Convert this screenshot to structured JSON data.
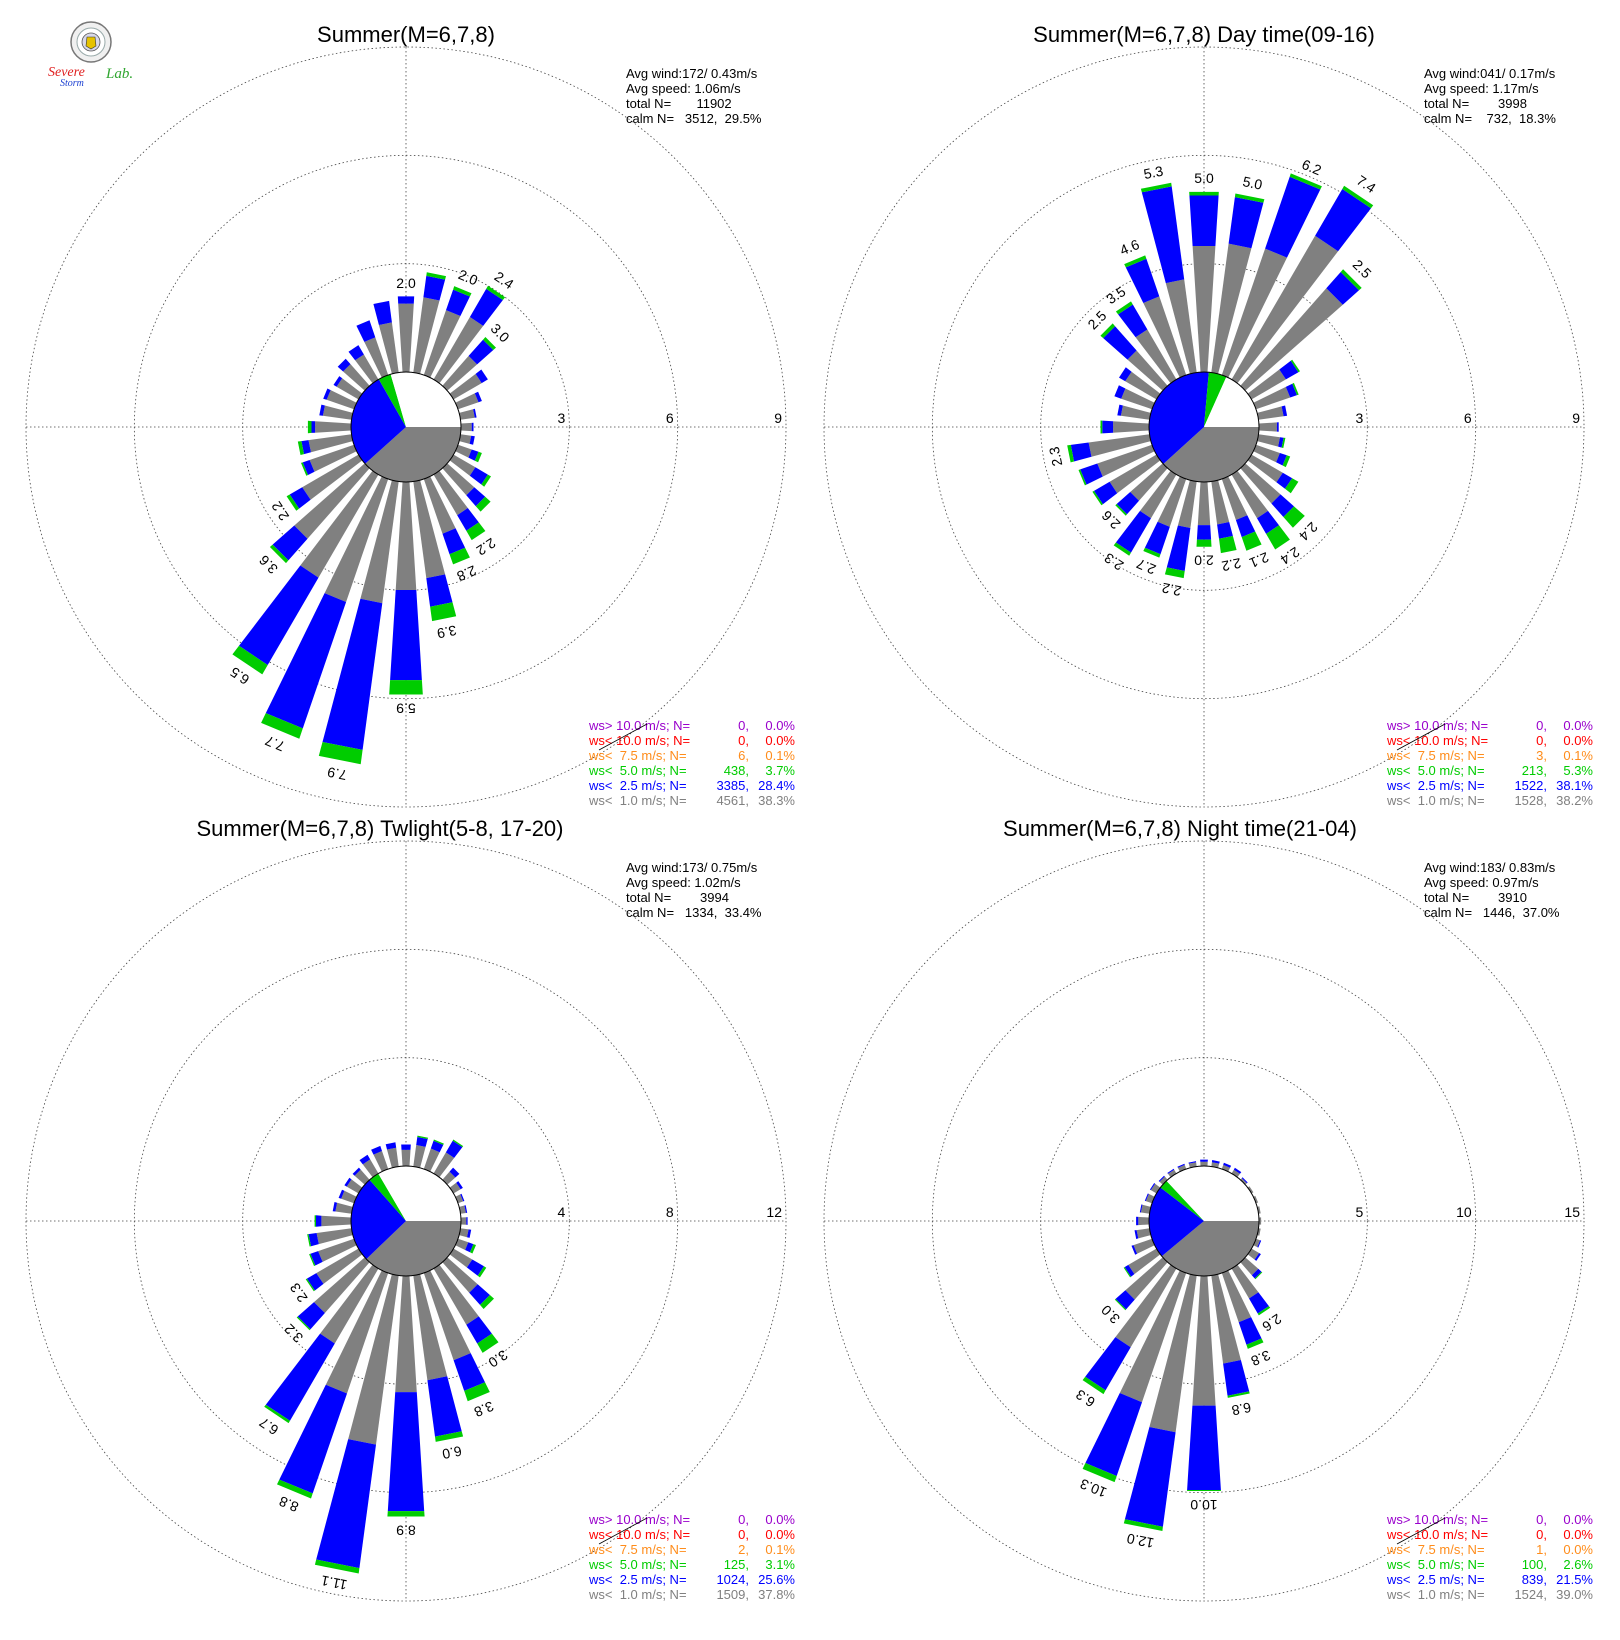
{
  "logo": {
    "name": "Severe Storm Lab.",
    "text_severe": "Severe",
    "text_storm": "Storm",
    "text_lab": "Lab.",
    "colors": {
      "severe": "#e02020",
      "storm": "#1a3fd1",
      "lab": "#2fa52f"
    }
  },
  "legend_labels": [
    "ws> 10.0 m/s; N=",
    "ws< 10.0 m/s; N=",
    "ws<  7.5 m/s; N=",
    "ws<  5.0 m/s; N=",
    "ws<  2.5 m/s; N=",
    "ws<  1.0 m/s; N="
  ],
  "bins": [
    {
      "label": "ws> 10.0 m/s",
      "color": "#9900cc"
    },
    {
      "label": "ws< 10.0 m/s",
      "color": "#ff0000"
    },
    {
      "label": "ws< 7.5 m/s",
      "color": "#ff8c1a"
    },
    {
      "label": "ws< 5.0 m/s",
      "color": "#00cc00"
    },
    {
      "label": "ws< 2.5 m/s",
      "color": "#0000ff"
    },
    {
      "label": "ws< 1.0 m/s",
      "color": "#808080"
    }
  ],
  "chart_data": [
    {
      "type": "windrose",
      "title": "Summer(M=6,7,8)",
      "stats": {
        "avg_wind": "Avg wind:172/ 0.43m/s",
        "avg_speed": "Avg speed: 1.06m/s",
        "total": "total N=       11902",
        "calm": "calm N=   3512,  29.5%"
      },
      "radial_ticks": [
        "3",
        "6",
        "9"
      ],
      "rmax": 9,
      "calm_pie_pct": [
        38.3,
        28.4,
        3.7,
        29.5
      ],
      "petals": [
        [
          1.9,
          0.2,
          0
        ],
        [
          2.1,
          0.6,
          0.1
        ],
        [
          1.9,
          0.6,
          0.1
        ],
        [
          2.0,
          0.9,
          0.1
        ],
        [
          1.1,
          0.6,
          0.1
        ],
        [
          0.9,
          0.2,
          0
        ],
        [
          0.6,
          0.1,
          0
        ],
        [
          0.4,
          0.05,
          0
        ],
        [
          0.3,
          0.05,
          0
        ],
        [
          0.3,
          0.1,
          0
        ],
        [
          0.4,
          0.2,
          0.1
        ],
        [
          0.7,
          0.4,
          0.1
        ],
        [
          1.0,
          0.4,
          0.2
        ],
        [
          1.3,
          0.5,
          0.3
        ],
        [
          1.6,
          0.6,
          0.3
        ],
        [
          2.7,
          0.8,
          0.4
        ],
        [
          3.0,
          2.5,
          0.4
        ],
        [
          3.4,
          4.1,
          0.4
        ],
        [
          3.6,
          3.7,
          0.3
        ],
        [
          3.3,
          2.8,
          0.3
        ],
        [
          2.6,
          0.8,
          0.1
        ],
        [
          1.8,
          0.4,
          0.1
        ],
        [
          1.3,
          0.2,
          0.05
        ],
        [
          1.2,
          0.2,
          0.1
        ],
        [
          1.0,
          0.1,
          0.1
        ],
        [
          0.8,
          0.1,
          0
        ],
        [
          0.8,
          0.1,
          0
        ],
        [
          0.7,
          0.1,
          0
        ],
        [
          0.8,
          0.2,
          0
        ],
        [
          0.8,
          0.3,
          0
        ],
        [
          1.1,
          0.5,
          0
        ],
        [
          1.4,
          0.6,
          0
        ]
      ],
      "petal_labels": [
        {
          "dir": 0,
          "text": "2.0"
        },
        {
          "dir": 2,
          "text": "2.0"
        },
        {
          "dir": 3,
          "text": "2.4"
        },
        {
          "dir": 4,
          "text": "3.0"
        },
        {
          "dir": 13,
          "text": "2.2"
        },
        {
          "dir": 14,
          "text": "2.8"
        },
        {
          "dir": 15,
          "text": "3.9"
        },
        {
          "dir": 16,
          "text": "5.9"
        },
        {
          "dir": 17,
          "text": "7.9"
        },
        {
          "dir": 18,
          "text": "7.7"
        },
        {
          "dir": 19,
          "text": "6.5"
        },
        {
          "dir": 20,
          "text": "3.6"
        },
        {
          "dir": 21,
          "text": "2.2"
        }
      ],
      "legend": [
        {
          "n": "0",
          "pct": "0.0%"
        },
        {
          "n": "0",
          "pct": "0.0%"
        },
        {
          "n": "6",
          "pct": "0.1%"
        },
        {
          "n": "438",
          "pct": "3.7%"
        },
        {
          "n": "3385",
          "pct": "28.4%"
        },
        {
          "n": "4561",
          "pct": "38.3%"
        }
      ]
    },
    {
      "type": "windrose",
      "title": "Summer(M=6,7,8) Day time(09-16)",
      "stats": {
        "avg_wind": "Avg wind:041/ 0.17m/s",
        "avg_speed": "Avg speed: 1.17m/s",
        "total": "total N=        3998",
        "calm": "calm N=    732,  18.3%"
      },
      "radial_ticks": [
        "3",
        "6",
        "9"
      ],
      "rmax": 9,
      "calm_pie_pct": [
        38.2,
        38.1,
        5.3,
        18.3
      ],
      "petals": [
        [
          3.5,
          1.4,
          0.1
        ],
        [
          3.6,
          1.3,
          0.1
        ],
        [
          3.7,
          2.1,
          0.1
        ],
        [
          4.6,
          1.5,
          0.1
        ],
        [
          3.6,
          0.6,
          0.1
        ],
        [
          1.1,
          0.4,
          0.05
        ],
        [
          1.0,
          0.2,
          0.05
        ],
        [
          0.7,
          0.1,
          0
        ],
        [
          0.5,
          0.05,
          0
        ],
        [
          0.6,
          0.1,
          0.05
        ],
        [
          0.7,
          0.2,
          0.1
        ],
        [
          1.0,
          0.3,
          0.2
        ],
        [
          1.3,
          0.5,
          0.4
        ],
        [
          1.4,
          0.5,
          0.5
        ],
        [
          1.2,
          0.5,
          0.4
        ],
        [
          1.2,
          0.4,
          0.4
        ],
        [
          1.2,
          0.4,
          0.2
        ],
        [
          1.3,
          1.2,
          0.2
        ],
        [
          1.4,
          0.8,
          0.1
        ],
        [
          1.4,
          1.1,
          0.1
        ],
        [
          1.2,
          0.5,
          0.05
        ],
        [
          1.5,
          0.5,
          0.05
        ],
        [
          1.6,
          0.5,
          0.05
        ],
        [
          1.7,
          0.5,
          0.1
        ],
        [
          1.0,
          0.3,
          0.05
        ],
        [
          0.8,
          0.1,
          0
        ],
        [
          0.9,
          0.2,
          0
        ],
        [
          1.0,
          0.2,
          0
        ],
        [
          1.3,
          0.9,
          0.1
        ],
        [
          1.6,
          0.8,
          0.1
        ],
        [
          2.3,
          1.1,
          0.1
        ],
        [
          2.6,
          2.6,
          0.1
        ]
      ],
      "petal_labels": [
        {
          "dir": 0,
          "text": "5.0"
        },
        {
          "dir": 1,
          "text": "5.0"
        },
        {
          "dir": 2,
          "text": "6.2"
        },
        {
          "dir": 3,
          "text": "7.4"
        },
        {
          "dir": 4,
          "text": "2.5"
        },
        {
          "dir": 12,
          "text": "2.4"
        },
        {
          "dir": 13,
          "text": "2.4"
        },
        {
          "dir": 14,
          "text": "2.1"
        },
        {
          "dir": 15,
          "text": "2.2"
        },
        {
          "dir": 16,
          "text": "2.0"
        },
        {
          "dir": 17,
          "text": "2.2"
        },
        {
          "dir": 18,
          "text": "2.7"
        },
        {
          "dir": 19,
          "text": "2.3"
        },
        {
          "dir": 20,
          "text": "2.6"
        },
        {
          "dir": 23,
          "text": "2.3"
        },
        {
          "dir": 28,
          "text": "2.5"
        },
        {
          "dir": 29,
          "text": "3.5"
        },
        {
          "dir": 30,
          "text": "4.6"
        },
        {
          "dir": 31,
          "text": "5.3"
        }
      ],
      "legend": [
        {
          "n": "0",
          "pct": "0.0%"
        },
        {
          "n": "0",
          "pct": "0.0%"
        },
        {
          "n": "3",
          "pct": "0.1%"
        },
        {
          "n": "213",
          "pct": "5.3%"
        },
        {
          "n": "1522",
          "pct": "38.1%"
        },
        {
          "n": "1528",
          "pct": "38.2%"
        }
      ]
    },
    {
      "type": "windrose",
      "title": "Summer(M=6,7,8) Twlight(5-8, 17-20)",
      "stats": {
        "avg_wind": "Avg wind:173/ 0.75m/s",
        "avg_speed": "Avg speed: 1.02m/s",
        "total": "total N=        3994",
        "calm": "calm N=   1334,  33.4%"
      },
      "radial_ticks": [
        "4",
        "8",
        "12"
      ],
      "rmax": 12,
      "calm_pie_pct": [
        37.8,
        25.6,
        3.1,
        33.4
      ],
      "petals": [
        [
          0.6,
          0.2,
          0
        ],
        [
          0.8,
          0.3,
          0.05
        ],
        [
          0.8,
          0.3,
          0.05
        ],
        [
          0.9,
          0.5,
          0.05
        ],
        [
          0.4,
          0.2,
          0
        ],
        [
          0.3,
          0.1,
          0
        ],
        [
          0.2,
          0.05,
          0
        ],
        [
          0.2,
          0.05,
          0
        ],
        [
          0.2,
          0.05,
          0
        ],
        [
          0.3,
          0.1,
          0
        ],
        [
          0.4,
          0.2,
          0.1
        ],
        [
          0.8,
          0.5,
          0.1
        ],
        [
          1.5,
          0.6,
          0.2
        ],
        [
          2.4,
          0.8,
          0.4
        ],
        [
          3.4,
          1.2,
          0.4
        ],
        [
          3.9,
          2.1,
          0.2
        ],
        [
          4.3,
          4.4,
          0.2
        ],
        [
          6.3,
          4.6,
          0.2
        ],
        [
          4.7,
          3.9,
          0.2
        ],
        [
          3.2,
          3.3,
          0.1
        ],
        [
          2.5,
          0.8,
          0.05
        ],
        [
          1.8,
          0.4,
          0.05
        ],
        [
          1.4,
          0.3,
          0.05
        ],
        [
          1.3,
          0.3,
          0.05
        ],
        [
          1.1,
          0.2,
          0.05
        ],
        [
          0.6,
          0.1,
          0
        ],
        [
          0.5,
          0.1,
          0
        ],
        [
          0.5,
          0.1,
          0
        ],
        [
          0.5,
          0.1,
          0
        ],
        [
          0.6,
          0.2,
          0
        ],
        [
          0.7,
          0.2,
          0
        ],
        [
          0.7,
          0.2,
          0
        ]
      ],
      "petal_labels": [
        {
          "dir": 13,
          "text": "3.0"
        },
        {
          "dir": 14,
          "text": "3.8"
        },
        {
          "dir": 15,
          "text": "6.0"
        },
        {
          "dir": 16,
          "text": "8.9"
        },
        {
          "dir": 17,
          "text": "11.1"
        },
        {
          "dir": 18,
          "text": "8.8"
        },
        {
          "dir": 19,
          "text": "6.7"
        },
        {
          "dir": 20,
          "text": "3.2"
        },
        {
          "dir": 21,
          "text": "2.3"
        }
      ],
      "legend": [
        {
          "n": "0",
          "pct": "0.0%"
        },
        {
          "n": "0",
          "pct": "0.0%"
        },
        {
          "n": "2",
          "pct": "0.1%"
        },
        {
          "n": "125",
          "pct": "3.1%"
        },
        {
          "n": "1024",
          "pct": "25.6%"
        },
        {
          "n": "1509",
          "pct": "37.8%"
        }
      ]
    },
    {
      "type": "windrose",
      "title": "Summer(M=6,7,8) Night time(21-04)",
      "stats": {
        "avg_wind": "Avg wind:183/ 0.83m/s",
        "avg_speed": "Avg speed: 0.97m/s",
        "total": "total N=        3910",
        "calm": "calm N=   1446,  37.0%"
      },
      "radial_ticks": [
        "5",
        "10",
        "15"
      ],
      "rmax": 15,
      "calm_pie_pct": [
        39.0,
        21.5,
        2.6,
        37.0
      ],
      "petals": [
        [
          0.2,
          0.1,
          0
        ],
        [
          0.2,
          0.1,
          0
        ],
        [
          0.2,
          0.1,
          0
        ],
        [
          0.2,
          0.1,
          0
        ],
        [
          0.1,
          0.05,
          0
        ],
        [
          0.1,
          0,
          0
        ],
        [
          0.1,
          0,
          0
        ],
        [
          0.1,
          0,
          0
        ],
        [
          0.1,
          0,
          0
        ],
        [
          0.1,
          0,
          0
        ],
        [
          0.2,
          0.05,
          0
        ],
        [
          0.4,
          0.1,
          0
        ],
        [
          0.8,
          0.2,
          0.05
        ],
        [
          1.6,
          0.8,
          0.1
        ],
        [
          2.4,
          1.1,
          0.2
        ],
        [
          4.1,
          1.5,
          0.1
        ],
        [
          6.0,
          3.9,
          0.05
        ],
        [
          7.3,
          4.4,
          0.2
        ],
        [
          6.3,
          3.6,
          0.3
        ],
        [
          4.2,
          2.3,
          0.2
        ],
        [
          2.3,
          0.6,
          0.05
        ],
        [
          1.5,
          0.2,
          0.05
        ],
        [
          0.9,
          0.1,
          0
        ],
        [
          0.6,
          0.1,
          0
        ],
        [
          0.5,
          0.1,
          0
        ],
        [
          0.4,
          0.05,
          0
        ],
        [
          0.3,
          0.05,
          0
        ],
        [
          0.3,
          0.05,
          0
        ],
        [
          0.2,
          0.05,
          0
        ],
        [
          0.2,
          0.05,
          0
        ],
        [
          0.2,
          0.05,
          0
        ],
        [
          0.2,
          0.05,
          0
        ]
      ],
      "petal_labels": [
        {
          "dir": 13,
          "text": "2.6"
        },
        {
          "dir": 14,
          "text": "3.8"
        },
        {
          "dir": 15,
          "text": "6.8"
        },
        {
          "dir": 16,
          "text": "10.0"
        },
        {
          "dir": 17,
          "text": "12.0"
        },
        {
          "dir": 18,
          "text": "10.3"
        },
        {
          "dir": 19,
          "text": "6.3"
        },
        {
          "dir": 20,
          "text": "3.0"
        }
      ],
      "legend": [
        {
          "n": "0",
          "pct": "0.0%"
        },
        {
          "n": "0",
          "pct": "0.0%"
        },
        {
          "n": "1",
          "pct": "0.0%"
        },
        {
          "n": "100",
          "pct": "2.6%"
        },
        {
          "n": "839",
          "pct": "21.5%"
        },
        {
          "n": "1524",
          "pct": "39.0%"
        }
      ]
    }
  ]
}
